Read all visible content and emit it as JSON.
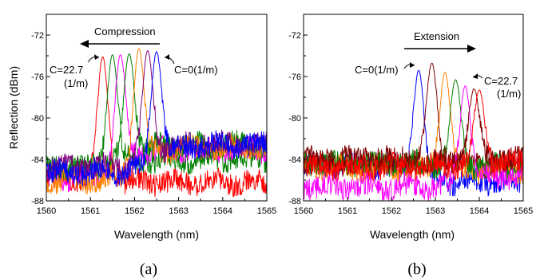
{
  "chart_data": [
    {
      "type": "line",
      "panel_label": "(a)",
      "xlabel": "Wavelength (nm)",
      "ylabel": "Reflection (dBm)",
      "xlim": [
        1560,
        1565
      ],
      "ylim": [
        -88,
        -70
      ],
      "xticks": [
        1560,
        1561,
        1562,
        1563,
        1564,
        1565
      ],
      "yticks": [
        -88,
        -84,
        -80,
        -76,
        -72
      ],
      "annotations": [
        {
          "text": "Compression",
          "arrow": "left"
        },
        {
          "text": "C=22.7",
          "text2": "(1/m)"
        },
        {
          "text": "C=0(1/m)"
        }
      ],
      "series": [
        {
          "color": "#ff0000",
          "peak_x": 1561.28,
          "peak_y": -74.1,
          "floor_pre": -85.7,
          "floor_post": -86.2
        },
        {
          "color": "#008000",
          "peak_x": 1561.5,
          "peak_y": -73.9,
          "floor_pre": -85.0,
          "floor_post": -84.0
        },
        {
          "color": "#ff00ff",
          "peak_x": 1561.68,
          "peak_y": -73.9,
          "floor_pre": -85.8,
          "floor_post": -83.0
        },
        {
          "color": "#008000",
          "peak_x": 1561.88,
          "peak_y": -73.8,
          "floor_pre": -84.8,
          "floor_post": -82.6
        },
        {
          "color": "#ff8000",
          "peak_x": 1562.1,
          "peak_y": -73.3,
          "floor_pre": -86.0,
          "floor_post": -82.9
        },
        {
          "color": "#800080",
          "peak_x": 1562.3,
          "peak_y": -73.5,
          "floor_pre": -84.7,
          "floor_post": -82.6
        },
        {
          "color": "#0000ff",
          "peak_x": 1562.5,
          "peak_y": -73.6,
          "floor_pre": -85.3,
          "floor_post": -82.6
        }
      ]
    },
    {
      "type": "line",
      "panel_label": "(b)",
      "xlabel": "Wavelength (nm)",
      "ylabel": "",
      "xlim": [
        1560,
        1565
      ],
      "ylim": [
        -88,
        -70
      ],
      "xticks": [
        1560,
        1561,
        1562,
        1563,
        1564,
        1565
      ],
      "yticks": [
        -88,
        -84,
        -80,
        -76,
        -72
      ],
      "annotations": [
        {
          "text": "Extension",
          "arrow": "right"
        },
        {
          "text": "C=0(1/m)"
        },
        {
          "text": "C=22.7",
          "text2": "(1/m)"
        }
      ],
      "series": [
        {
          "color": "#0000ff",
          "peak_x": 1562.62,
          "peak_y": -75.4,
          "floor_pre": -84.6,
          "floor_post": -86.2
        },
        {
          "color": "#800000",
          "peak_x": 1562.92,
          "peak_y": -74.7,
          "floor_pre": -84.0,
          "floor_post": -84.4
        },
        {
          "color": "#ff8000",
          "peak_x": 1563.22,
          "peak_y": -75.6,
          "floor_pre": -84.8,
          "floor_post": -85.0
        },
        {
          "color": "#008000",
          "peak_x": 1563.46,
          "peak_y": -76.3,
          "floor_pre": -84.4,
          "floor_post": -84.7
        },
        {
          "color": "#ff00ff",
          "peak_x": 1563.68,
          "peak_y": -76.9,
          "floor_pre": -86.6,
          "floor_post": -85.6
        },
        {
          "color": "#800000",
          "peak_x": 1563.88,
          "peak_y": -77.2,
          "floor_pre": -84.2,
          "floor_post": -84.0
        },
        {
          "color": "#ff0000",
          "peak_x": 1564.0,
          "peak_y": -77.3,
          "floor_pre": -84.7,
          "floor_post": -84.3
        }
      ]
    }
  ]
}
